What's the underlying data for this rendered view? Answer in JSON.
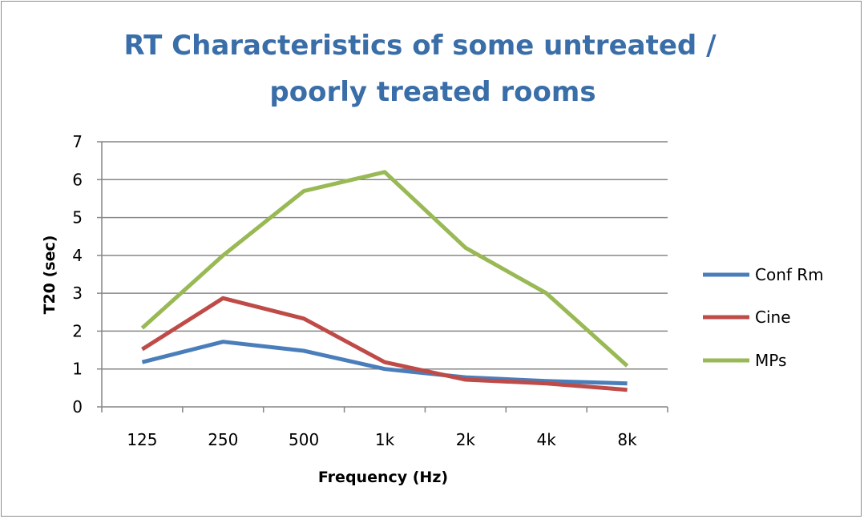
{
  "chart_data": {
    "type": "line",
    "title_lines": [
      "RT Characteristics  of some untreated /",
      "poorly treated rooms"
    ],
    "xlabel": "Frequency (Hz)",
    "ylabel": "T20 (sec)",
    "categories": [
      "125",
      "250",
      "500",
      "1k",
      "2k",
      "4k",
      "8k"
    ],
    "ylim": [
      0,
      7
    ],
    "yticks": [
      "0",
      "1",
      "2",
      "3",
      "4",
      "5",
      "6",
      "7"
    ],
    "grid": "horizontal",
    "legend_position": "right",
    "series": [
      {
        "name": "Conf Rm",
        "color": "#4a7ebb",
        "values": [
          1.18,
          1.72,
          1.48,
          1.0,
          0.78,
          0.68,
          0.62
        ]
      },
      {
        "name": "Cine",
        "color": "#be4b48",
        "values": [
          1.52,
          2.87,
          2.33,
          1.18,
          0.72,
          0.62,
          0.45
        ]
      },
      {
        "name": "MPs",
        "color": "#98b954",
        "values": [
          2.08,
          4.0,
          5.7,
          6.2,
          4.2,
          3.0,
          1.08
        ]
      }
    ]
  }
}
